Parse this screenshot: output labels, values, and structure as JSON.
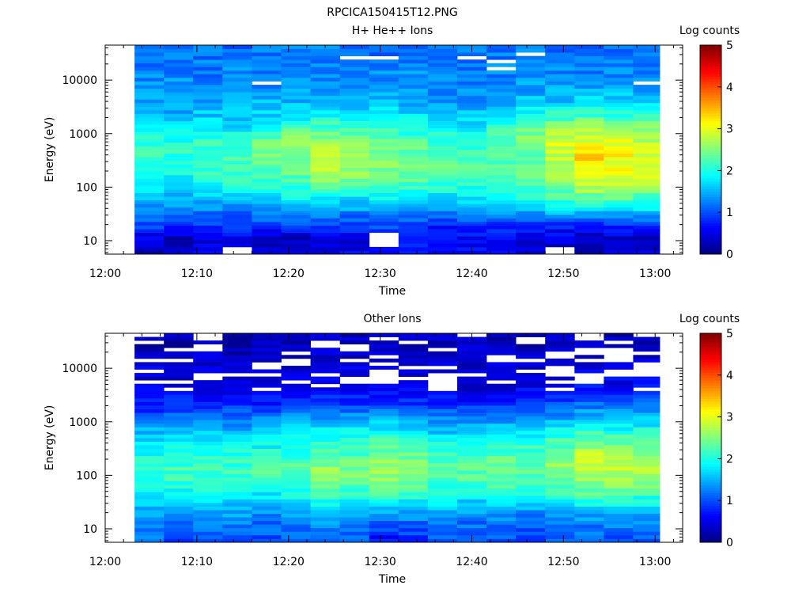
{
  "figure_title": "RPCICA150415T12.PNG",
  "chart_data": [
    {
      "type": "heatmap",
      "title": "H+ He++ Ions",
      "xlabel": "Time",
      "ylabel": "Energy (eV)",
      "x_ticks": [
        "12:00",
        "12:10",
        "12:20",
        "12:30",
        "12:40",
        "12:50",
        "13:00"
      ],
      "y_ticks": [
        {
          "value": 10,
          "label": "10"
        },
        {
          "value": 100,
          "label": "100"
        },
        {
          "value": 1000,
          "label": "1000"
        },
        {
          "value": 10000,
          "label": "10000"
        }
      ],
      "y_scale": "log",
      "ylim": [
        5.6,
        45000
      ],
      "time_range_min": [
        0,
        63
      ],
      "data_time_range_min": [
        3,
        60.5
      ],
      "colorbar": {
        "label": "Log counts",
        "ticks": [
          "0",
          "1",
          "2",
          "3",
          "4",
          "5"
        ],
        "range": [
          0,
          5
        ],
        "colormap": "jet"
      },
      "series": [
        {
          "time_min": 3.2,
          "levels": [
            0.3,
            0.4,
            0.9,
            1.2,
            1.5,
            1.8,
            2.1,
            2.2,
            2.1,
            1.9,
            1.6,
            1.4,
            1.3,
            1.3,
            1.2,
            1.2
          ]
        },
        {
          "time_min": 6.4,
          "levels": [
            0.5,
            0.2,
            0.8,
            1.1,
            1.5,
            1.8,
            2.0,
            2.1,
            2.0,
            1.8,
            1.5,
            1.4,
            1.3,
            1.3,
            1.2,
            1.2
          ]
        },
        {
          "time_min": 9.6,
          "levels": [
            0.6,
            0.5,
            0.9,
            1.2,
            1.5,
            1.9,
            2.1,
            2.2,
            2.1,
            1.8,
            1.6,
            1.4,
            1.3,
            1.2,
            1.2,
            1.2
          ]
        },
        {
          "time_min": 12.8,
          "levels": [
            -1,
            0.5,
            0.8,
            1.2,
            1.6,
            2.0,
            2.2,
            2.3,
            2.2,
            1.8,
            1.6,
            1.4,
            1.3,
            1.3,
            1.2,
            1.1
          ]
        },
        {
          "time_min": 16.0,
          "levels": [
            0.5,
            0.3,
            0.8,
            1.3,
            1.7,
            2.1,
            2.3,
            2.4,
            2.4,
            2.0,
            1.7,
            1.5,
            1.3,
            1.3,
            1.2,
            1.2
          ]
        },
        {
          "time_min": 19.2,
          "levels": [
            0.4,
            0.3,
            0.9,
            1.3,
            1.8,
            2.2,
            2.4,
            2.5,
            2.6,
            2.2,
            1.8,
            1.5,
            1.4,
            1.3,
            1.2,
            1.2
          ]
        },
        {
          "time_min": 22.4,
          "levels": [
            0.5,
            0.3,
            0.8,
            1.3,
            1.9,
            2.5,
            2.7,
            2.7,
            2.7,
            2.3,
            1.9,
            1.5,
            1.4,
            1.3,
            1.2,
            1.2
          ]
        },
        {
          "time_min": 25.6,
          "levels": [
            0.6,
            0.4,
            0.9,
            1.3,
            1.8,
            2.4,
            2.6,
            2.6,
            2.5,
            2.2,
            1.8,
            1.5,
            1.4,
            1.3,
            1.3,
            1.2
          ]
        },
        {
          "time_min": 28.8,
          "levels": [
            0.7,
            -1,
            1.0,
            1.5,
            1.9,
            2.3,
            2.5,
            2.5,
            2.4,
            2.1,
            1.8,
            1.5,
            1.4,
            1.3,
            1.2,
            1.2
          ]
        },
        {
          "time_min": 32.0,
          "levels": [
            0.7,
            0.7,
            0.9,
            1.4,
            1.8,
            2.2,
            2.4,
            2.4,
            2.3,
            2.0,
            1.7,
            1.5,
            1.3,
            1.3,
            1.2,
            1.1
          ]
        },
        {
          "time_min": 35.2,
          "levels": [
            0.6,
            0.5,
            0.8,
            1.3,
            1.7,
            2.1,
            2.3,
            2.3,
            2.2,
            1.9,
            1.6,
            1.4,
            1.3,
            1.3,
            1.2,
            1.2
          ]
        },
        {
          "time_min": 38.4,
          "levels": [
            0.6,
            0.5,
            0.8,
            1.3,
            1.7,
            2.0,
            2.2,
            2.2,
            2.1,
            1.9,
            1.6,
            1.4,
            1.3,
            1.2,
            1.2,
            1.2
          ]
        },
        {
          "time_min": 41.6,
          "levels": [
            0.6,
            0.5,
            0.8,
            1.3,
            1.8,
            2.1,
            2.3,
            2.3,
            2.3,
            2.1,
            1.8,
            1.5,
            1.3,
            1.3,
            1.2,
            1.2
          ]
        },
        {
          "time_min": 44.8,
          "levels": [
            0.5,
            0.5,
            0.8,
            1.4,
            1.9,
            2.2,
            2.4,
            2.4,
            2.5,
            2.4,
            1.9,
            1.6,
            1.4,
            1.3,
            1.2,
            1.2
          ]
        },
        {
          "time_min": 48.0,
          "levels": [
            -1,
            0.4,
            0.8,
            1.5,
            2.1,
            2.6,
            2.8,
            2.8,
            3.0,
            2.6,
            2.1,
            1.6,
            1.4,
            1.3,
            1.2,
            1.2
          ]
        },
        {
          "time_min": 51.2,
          "levels": [
            0.4,
            0.3,
            0.7,
            1.6,
            2.3,
            2.9,
            3.2,
            3.3,
            3.0,
            2.8,
            2.2,
            1.7,
            1.4,
            1.3,
            1.2,
            1.2
          ]
        },
        {
          "time_min": 54.4,
          "levels": [
            0.5,
            0.3,
            0.8,
            1.6,
            2.3,
            2.8,
            3.0,
            3.1,
            3.0,
            2.8,
            2.1,
            1.7,
            1.4,
            1.3,
            1.2,
            1.2
          ]
        },
        {
          "time_min": 57.6,
          "levels": [
            0.5,
            0.3,
            0.8,
            1.6,
            2.2,
            2.7,
            3.0,
            2.9,
            2.8,
            2.5,
            2.1,
            1.6,
            1.4,
            1.3,
            1.2,
            1.2
          ]
        }
      ]
    },
    {
      "type": "heatmap",
      "title": "Other Ions",
      "xlabel": "Time",
      "ylabel": "Energy (eV)",
      "x_ticks": [
        "12:00",
        "12:10",
        "12:20",
        "12:30",
        "12:40",
        "12:50",
        "13:00"
      ],
      "y_ticks": [
        {
          "value": 10,
          "label": "10"
        },
        {
          "value": 100,
          "label": "100"
        },
        {
          "value": 1000,
          "label": "1000"
        },
        {
          "value": 10000,
          "label": "10000"
        }
      ],
      "y_scale": "log",
      "ylim": [
        5.6,
        45000
      ],
      "time_range_min": [
        0,
        63
      ],
      "data_time_range_min": [
        3,
        60.5
      ],
      "colorbar": {
        "label": "Log counts",
        "ticks": [
          "0",
          "1",
          "2",
          "3",
          "4",
          "5"
        ],
        "range": [
          0,
          5
        ],
        "colormap": "jet"
      },
      "series": [
        {
          "time_min": 3.2,
          "levels": [
            1.1,
            1.2,
            1.4,
            1.7,
            1.9,
            2.1,
            2.0,
            1.8,
            1.5,
            1.1,
            0.7,
            0.5,
            0.4,
            0.5,
            0.3,
            0.3
          ]
        },
        {
          "time_min": 6.4,
          "levels": [
            1.0,
            1.1,
            1.3,
            1.7,
            2.0,
            2.2,
            2.1,
            1.9,
            1.6,
            1.2,
            0.8,
            0.5,
            0.4,
            0.4,
            0.3,
            0.2
          ]
        },
        {
          "time_min": 9.6,
          "levels": [
            1.1,
            1.2,
            1.4,
            1.8,
            2.0,
            2.2,
            2.1,
            1.9,
            1.6,
            1.2,
            0.8,
            0.5,
            0.4,
            0.4,
            0.3,
            0.3
          ]
        },
        {
          "time_min": 12.8,
          "levels": [
            1.0,
            1.1,
            1.4,
            1.7,
            2.0,
            2.2,
            2.1,
            1.9,
            1.6,
            1.1,
            0.8,
            0.5,
            0.4,
            0.3,
            0.3,
            0.2
          ]
        },
        {
          "time_min": 16.0,
          "levels": [
            1.0,
            1.1,
            1.3,
            1.7,
            2.0,
            2.2,
            2.1,
            1.9,
            1.6,
            1.2,
            0.7,
            0.5,
            0.4,
            0.4,
            0.3,
            0.3
          ]
        },
        {
          "time_min": 19.2,
          "levels": [
            1.0,
            1.1,
            1.4,
            1.8,
            2.1,
            2.3,
            2.2,
            2.0,
            1.7,
            1.3,
            0.8,
            0.5,
            0.4,
            0.4,
            0.3,
            0.3
          ]
        },
        {
          "time_min": 22.4,
          "levels": [
            1.2,
            1.3,
            1.6,
            2.0,
            2.4,
            2.6,
            2.4,
            2.1,
            1.8,
            1.4,
            1.0,
            0.6,
            0.5,
            0.4,
            0.3,
            0.3
          ]
        },
        {
          "time_min": 25.6,
          "levels": [
            1.0,
            1.1,
            1.5,
            1.9,
            2.3,
            2.5,
            2.3,
            2.1,
            1.8,
            1.4,
            0.9,
            0.6,
            0.5,
            0.4,
            0.3,
            0.3
          ]
        },
        {
          "time_min": 28.8,
          "levels": [
            0.6,
            0.9,
            1.4,
            2.0,
            2.4,
            2.6,
            2.5,
            2.3,
            1.9,
            1.4,
            0.9,
            0.6,
            0.5,
            0.4,
            0.3,
            0.3
          ]
        },
        {
          "time_min": 32.0,
          "levels": [
            0.7,
            1.0,
            1.4,
            1.9,
            2.3,
            2.5,
            2.4,
            2.2,
            1.8,
            1.4,
            0.9,
            0.6,
            0.5,
            0.4,
            0.3,
            0.3
          ]
        },
        {
          "time_min": 35.2,
          "levels": [
            1.0,
            1.1,
            1.4,
            1.8,
            2.1,
            2.3,
            2.2,
            2.0,
            1.6,
            1.2,
            0.8,
            0.5,
            0.4,
            0.4,
            0.3,
            0.3
          ]
        },
        {
          "time_min": 38.4,
          "levels": [
            1.0,
            1.1,
            1.3,
            1.7,
            2.1,
            2.3,
            2.2,
            2.0,
            1.6,
            1.2,
            0.8,
            0.5,
            0.4,
            0.4,
            0.3,
            0.3
          ]
        },
        {
          "time_min": 41.6,
          "levels": [
            1.0,
            1.1,
            1.3,
            1.8,
            2.2,
            2.5,
            2.4,
            2.1,
            1.7,
            1.2,
            0.8,
            0.5,
            0.4,
            0.4,
            0.3,
            0.3
          ]
        },
        {
          "time_min": 44.8,
          "levels": [
            1.0,
            1.1,
            1.3,
            1.8,
            2.1,
            2.3,
            2.3,
            2.1,
            1.8,
            1.3,
            0.9,
            0.6,
            0.5,
            0.4,
            0.3,
            0.3
          ]
        },
        {
          "time_min": 48.0,
          "levels": [
            1.0,
            1.1,
            1.4,
            1.9,
            2.3,
            2.5,
            2.6,
            2.3,
            1.9,
            1.4,
            1.0,
            0.6,
            0.5,
            0.4,
            0.3,
            0.3
          ]
        },
        {
          "time_min": 51.2,
          "levels": [
            1.0,
            1.2,
            1.5,
            2.0,
            2.5,
            2.8,
            2.9,
            2.6,
            2.1,
            1.6,
            1.1,
            0.7,
            0.5,
            0.4,
            0.3,
            0.3
          ]
        },
        {
          "time_min": 54.4,
          "levels": [
            1.0,
            1.2,
            1.5,
            2.0,
            2.5,
            2.8,
            2.8,
            2.5,
            2.0,
            1.6,
            1.1,
            0.7,
            0.5,
            0.4,
            0.3,
            0.3
          ]
        },
        {
          "time_min": 57.6,
          "levels": [
            1.0,
            1.1,
            1.5,
            1.9,
            2.4,
            2.7,
            2.7,
            2.5,
            2.0,
            1.6,
            1.1,
            0.7,
            0.5,
            0.4,
            0.3,
            0.3
          ]
        }
      ]
    }
  ]
}
